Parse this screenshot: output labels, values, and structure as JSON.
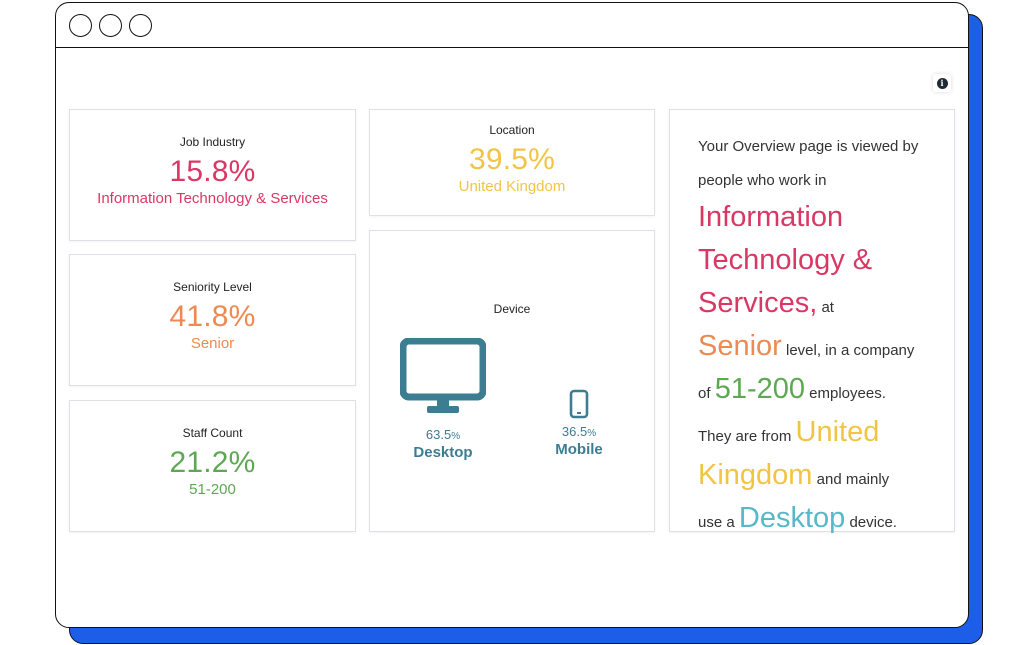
{
  "colors": {
    "accent_blue": "#1d5ee9",
    "industry": "#d93865",
    "seniority": "#ec8a52",
    "staff": "#5ea854",
    "location": "#f1c544",
    "device": "#3c7d92",
    "device_highlight": "#58b8c9"
  },
  "window": {
    "controls": [
      "circle",
      "circle",
      "circle"
    ],
    "info_icon": "info-icon"
  },
  "cards": {
    "job_industry": {
      "title": "Job Industry",
      "value": "15.8%",
      "label": "Information Technology & Services"
    },
    "seniority": {
      "title": "Seniority Level",
      "value": "41.8%",
      "label": "Senior"
    },
    "staff_count": {
      "title": "Staff Count",
      "value": "21.2%",
      "label": "51-200"
    },
    "location": {
      "title": "Location",
      "value": "39.5%",
      "label": "United Kingdom"
    },
    "device": {
      "title": "Device",
      "desktop": {
        "pct": "63.5",
        "unit": "%",
        "label": "Desktop",
        "icon": "desktop-monitor-icon"
      },
      "mobile": {
        "pct": "36.5",
        "unit": "%",
        "label": "Mobile",
        "icon": "mobile-phone-icon"
      }
    }
  },
  "summary": {
    "p1": "Your Overview page is viewed by",
    "p2": "people who work in",
    "industry_1": "Information",
    "industry_2": "Technology &",
    "industry_3": "Services,",
    "at": "at",
    "seniority": "Senior",
    "level_text": "level, in a company",
    "of": "of",
    "staff": "51-200",
    "employees": "employees.",
    "from": "They are from",
    "country_1": "United",
    "country_2": "Kingdom",
    "mainly": "and mainly",
    "use": "use a",
    "device": "Desktop",
    "device_end": "device."
  }
}
